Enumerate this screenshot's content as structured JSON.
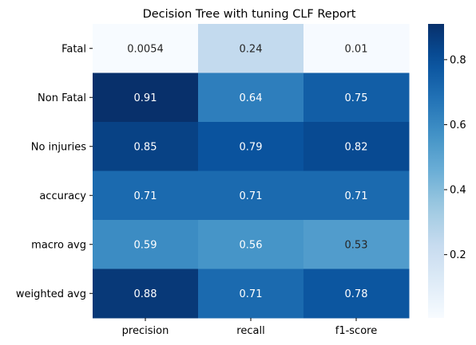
{
  "chart_data": {
    "type": "heatmap",
    "title": "Decision Tree with tuning CLF Report",
    "xlabel": "",
    "ylabel": "",
    "x_categories": [
      "precision",
      "recall",
      "f1-score"
    ],
    "y_categories": [
      "Fatal",
      "Non Fatal",
      "No injuries",
      "accuracy",
      "macro avg",
      "weighted avg"
    ],
    "values": [
      [
        0.0054,
        0.24,
        0.01
      ],
      [
        0.91,
        0.64,
        0.75
      ],
      [
        0.85,
        0.79,
        0.82
      ],
      [
        0.71,
        0.71,
        0.71
      ],
      [
        0.59,
        0.56,
        0.53
      ],
      [
        0.88,
        0.71,
        0.78
      ]
    ],
    "annotations": [
      [
        "0.0054",
        "0.24",
        "0.01"
      ],
      [
        "0.91",
        "0.64",
        "0.75"
      ],
      [
        "0.85",
        "0.79",
        "0.82"
      ],
      [
        "0.71",
        "0.71",
        "0.71"
      ],
      [
        "0.59",
        "0.56",
        "0.53"
      ],
      [
        "0.88",
        "0.71",
        "0.78"
      ]
    ],
    "colormap": "Blues",
    "vmin": 0.0054,
    "vmax": 0.91,
    "colorbar_ticks": [
      0.2,
      0.4,
      0.6,
      0.8
    ],
    "colorbar_tick_labels": [
      "0.2",
      "0.4",
      "0.6",
      "0.8"
    ]
  }
}
